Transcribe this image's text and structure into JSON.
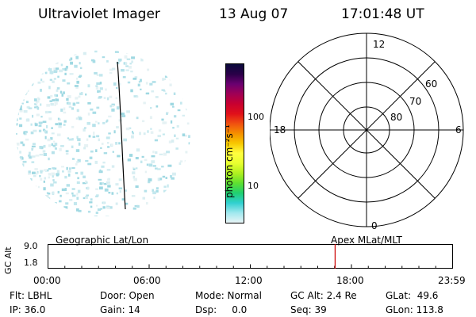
{
  "header": {
    "instrument": "Ultraviolet Imager",
    "date": "13 Aug 07",
    "time": "17:01:48 UT"
  },
  "colorbar": {
    "unit_label": "photon cm⁻²s⁻¹",
    "ticks": [
      "100",
      "10"
    ],
    "colors": [
      "#0a0a3a",
      "#2a0048",
      "#6a0070",
      "#a00055",
      "#c80030",
      "#e0101a",
      "#f05010",
      "#f59000",
      "#f8c800",
      "#ffff40",
      "#e8ff30",
      "#b0f020",
      "#60e030",
      "#20d070",
      "#30d0d0",
      "#a0e8ee",
      "#e8f4f6"
    ]
  },
  "polar_plot": {
    "mlt_labels": {
      "top": "12",
      "bottom": "0",
      "left": "18",
      "right": "6"
    },
    "lat_labels": [
      "60",
      "70",
      "80"
    ]
  },
  "timeline": {
    "left_title": "Geographic Lat/Lon",
    "right_title": "Apex MLat/MLT",
    "y_axis_label": "GC Alt",
    "y_ticks": [
      "9.0",
      "1.8"
    ],
    "x_ticks": [
      "00:00",
      "06:00",
      "12:00",
      "18:00",
      "23:59"
    ],
    "current_time_marker": "17:01:48",
    "marker_color": "#cc0000"
  },
  "info": {
    "flt": "Flt: LBHL",
    "ip": "IP: 36.0",
    "door": "Door: Open",
    "gain": "Gain: 14",
    "mode": "Mode: Normal",
    "dsp": "Dsp:     0.0",
    "gcalt": "GC Alt: 2.4 Re",
    "seq": "Seq: 39",
    "glat": "GLat:  49.6",
    "glon": "GLon: 113.8"
  }
}
